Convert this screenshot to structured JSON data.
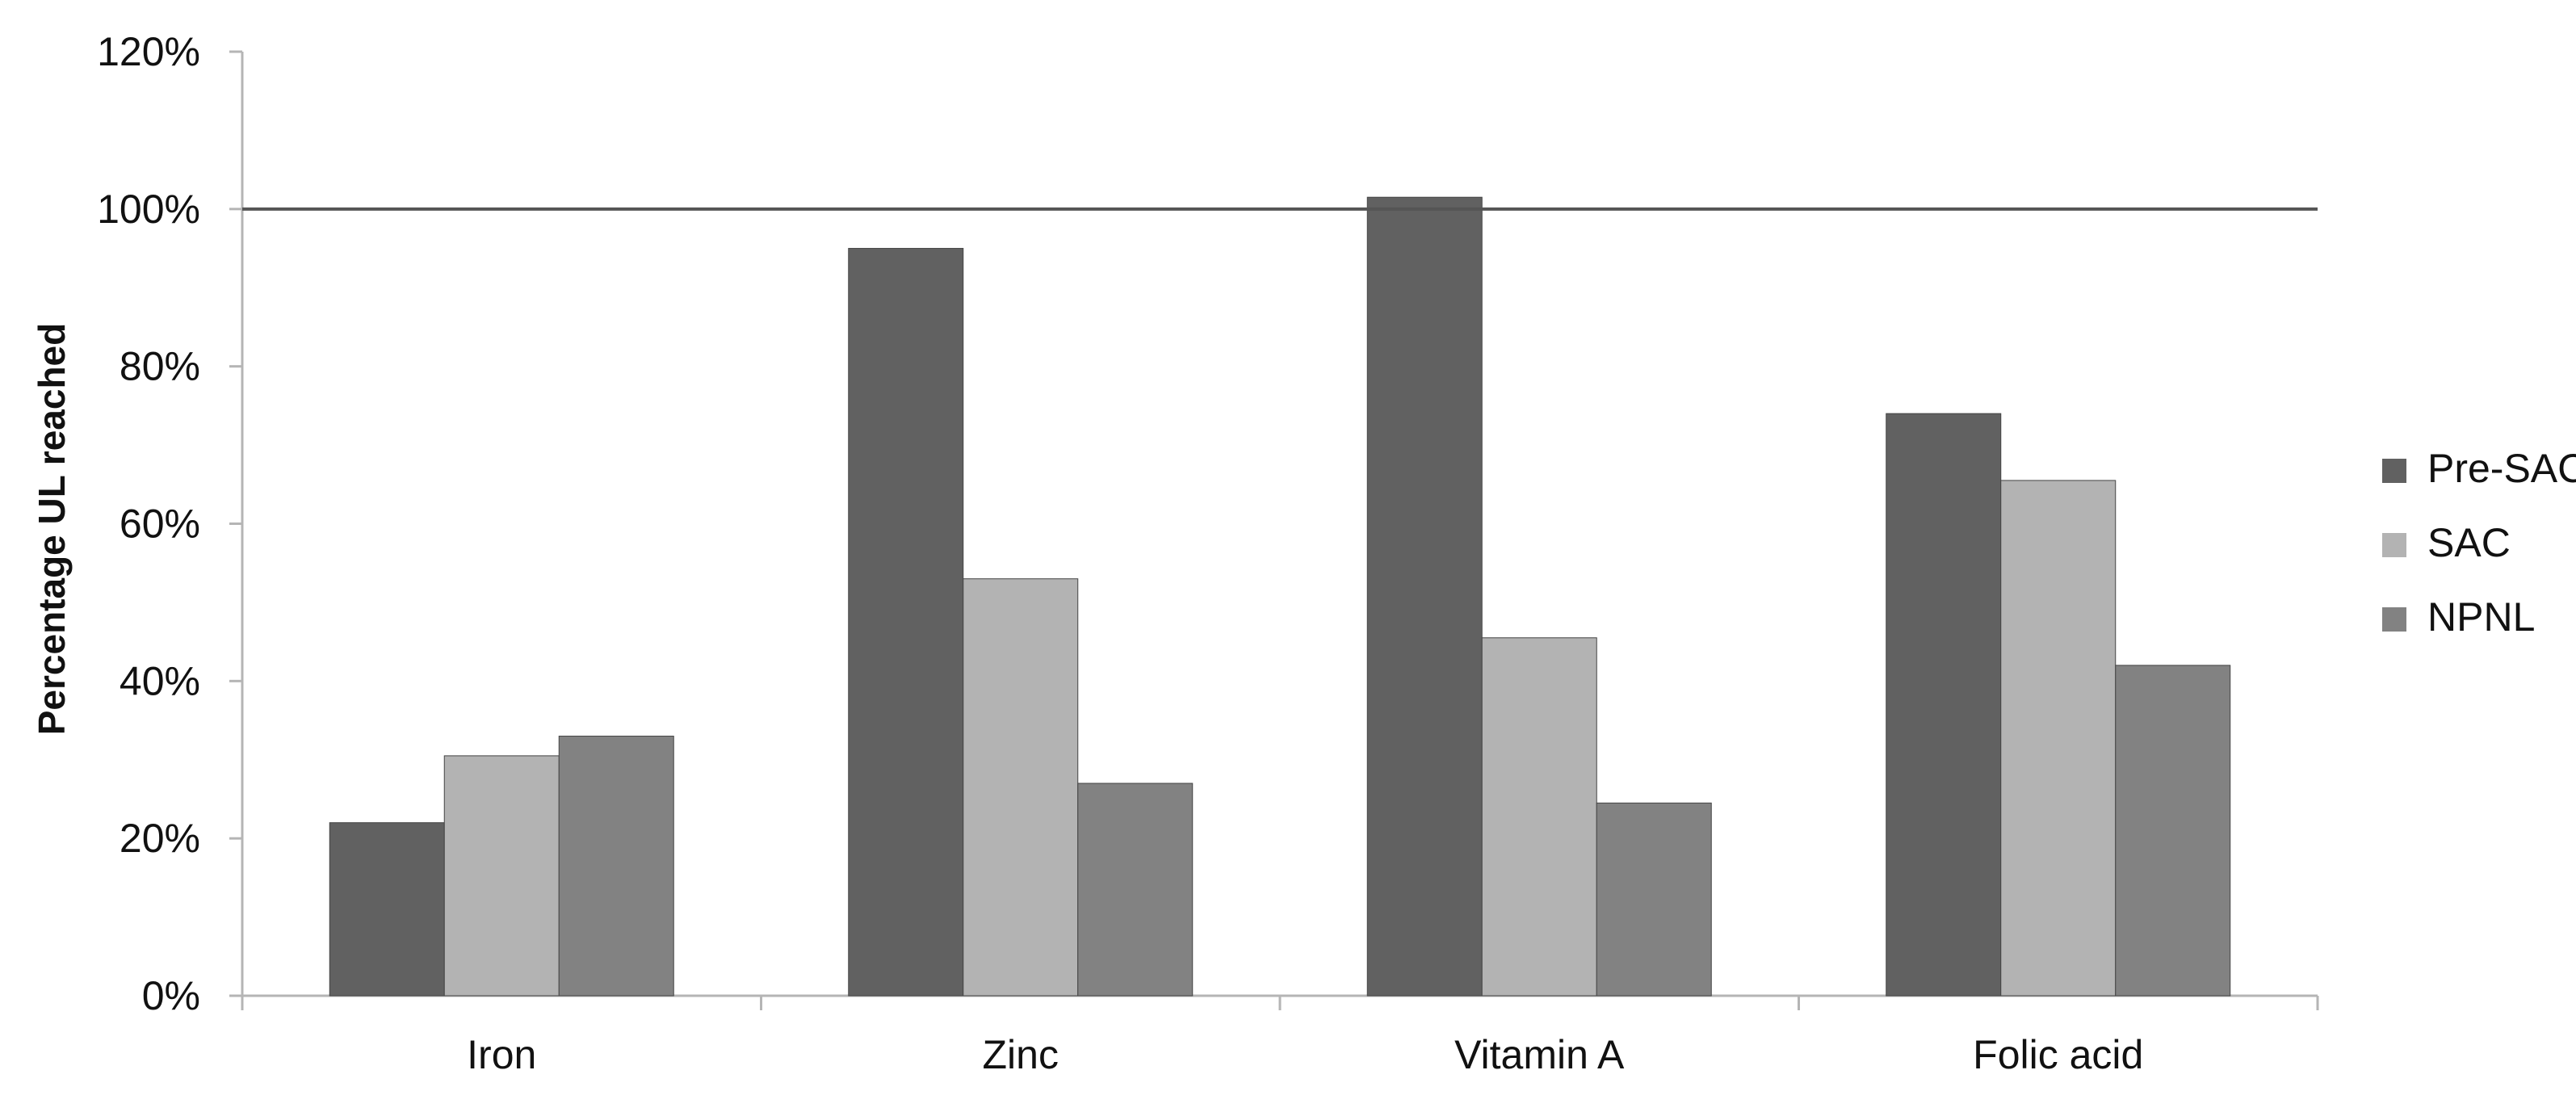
{
  "chart_data": {
    "type": "bar",
    "title": "",
    "xlabel": "",
    "ylabel": "Percentage UL reached",
    "categories": [
      "Iron",
      "Zinc",
      "Vitamin A",
      "Folic acid"
    ],
    "series": [
      {
        "name": "Pre-SAC",
        "color": "#616161",
        "values": [
          22,
          95,
          101.5,
          74
        ]
      },
      {
        "name": "SAC",
        "color": "#b3b3b3",
        "values": [
          30.5,
          53,
          45.5,
          65.5
        ]
      },
      {
        "name": "NPNL",
        "color": "#828282",
        "values": [
          33,
          27,
          24.5,
          42
        ]
      }
    ],
    "ylim": [
      0,
      120
    ],
    "yticks": [
      0,
      20,
      40,
      60,
      80,
      100,
      120
    ],
    "ytick_labels": [
      "0%",
      "20%",
      "40%",
      "60%",
      "80%",
      "100%",
      "120%"
    ],
    "reference_line": {
      "value": 100,
      "color": "#555555"
    },
    "grid": false,
    "legend": {
      "placement": "right"
    }
  }
}
